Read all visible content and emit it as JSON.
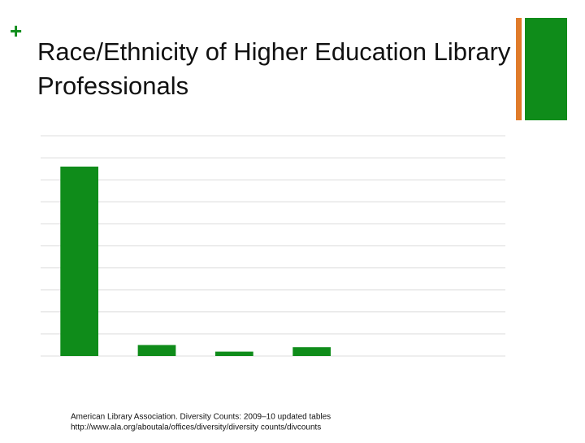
{
  "title": "Race/Ethnicity of Higher Education Library Professionals",
  "chart_data": {
    "type": "bar",
    "categories": [
      null,
      null,
      null,
      null,
      null,
      null
    ],
    "values": [
      8.6,
      0.5,
      0.2,
      0.4,
      null,
      null
    ],
    "color": "#0f8c1a",
    "ylim": [
      0,
      10
    ],
    "yticks": [
      0,
      1,
      2,
      3,
      4,
      5,
      6,
      7,
      8,
      9,
      10
    ],
    "grid": true
  },
  "source": {
    "line1": "American Library Association. Diversity Counts: 2009–10 updated tables",
    "line2": "http://www.ala.org/aboutala/offices/diversity/diversity counts/divcounts"
  }
}
